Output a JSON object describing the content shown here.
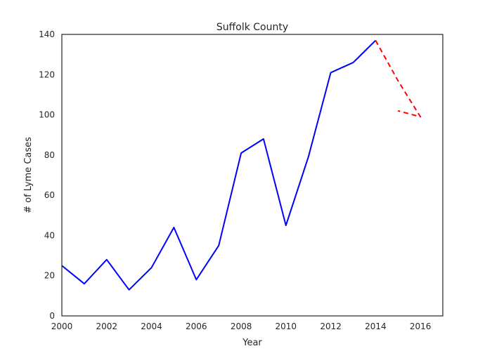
{
  "chart_data": {
    "type": "line",
    "title": "Suffolk County",
    "xlabel": "Year",
    "ylabel": "# of Lyme Cases",
    "xlim": [
      2000,
      2017
    ],
    "ylim": [
      0,
      140
    ],
    "x_ticks": [
      "2000",
      "2002",
      "2004",
      "2006",
      "2008",
      "2010",
      "2012",
      "2014",
      "2016"
    ],
    "y_ticks": [
      "0",
      "20",
      "40",
      "60",
      "80",
      "100",
      "120",
      "140"
    ],
    "grid": false,
    "series": [
      {
        "color": "#0000ff",
        "style": "solid",
        "x": [
          2000,
          2001,
          2002,
          2003,
          2004,
          2005,
          2006,
          2007,
          2008,
          2009,
          2010,
          2011,
          2012,
          2013,
          2014
        ],
        "y": [
          25,
          16,
          28,
          13,
          24,
          44,
          18,
          35,
          81,
          88,
          45,
          79,
          121,
          126,
          137
        ]
      },
      {
        "color": "#ff0000",
        "style": "dashed",
        "x": [
          2014,
          2015,
          2016,
          2015
        ],
        "y": [
          137,
          117,
          99,
          102
        ]
      }
    ]
  }
}
